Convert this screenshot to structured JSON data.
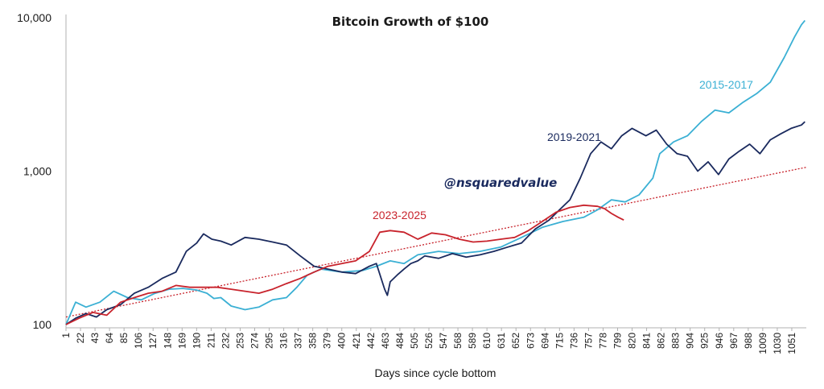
{
  "colors": {
    "c2015": "#3bb0d4",
    "c2019": "#1a2a5e",
    "c2023": "#c8232c",
    "trend": "#c8232c"
  },
  "chart_data": {
    "type": "line",
    "title": "Bitcoin Growth of $100",
    "subtitle": "",
    "xlabel": "Days since cycle bottom",
    "ylabel": "",
    "watermark": "@nsquaredvalue",
    "yscale": "log",
    "ylim": [
      100,
      10000
    ],
    "xlim": [
      1,
      1072
    ],
    "yticks": [
      100,
      1000,
      10000
    ],
    "ytick_labels": [
      "100",
      "1,000",
      "10,000"
    ],
    "xticks": [
      1,
      22,
      43,
      64,
      85,
      106,
      127,
      148,
      169,
      190,
      211,
      232,
      253,
      274,
      295,
      316,
      337,
      358,
      379,
      400,
      421,
      442,
      463,
      484,
      505,
      526,
      547,
      568,
      589,
      610,
      631,
      652,
      673,
      694,
      715,
      736,
      757,
      778,
      799,
      820,
      841,
      862,
      883,
      904,
      925,
      946,
      967,
      988,
      1009,
      1030,
      1051
    ],
    "grid": false,
    "legend": "none",
    "series": [
      {
        "name": "2015-2017",
        "label": "2015-2017",
        "x": [
          1,
          15,
          30,
          50,
          70,
          90,
          110,
          130,
          150,
          170,
          190,
          205,
          215,
          225,
          240,
          260,
          280,
          300,
          320,
          335,
          350,
          370,
          400,
          430,
          450,
          470,
          490,
          510,
          540,
          570,
          600,
          630,
          660,
          690,
          720,
          750,
          770,
          790,
          810,
          830,
          850,
          860,
          880,
          900,
          920,
          940,
          960,
          980,
          1000,
          1020,
          1040,
          1055,
          1065,
          1070
        ],
        "y": [
          100,
          140,
          130,
          140,
          165,
          150,
          145,
          160,
          170,
          172,
          168,
          160,
          148,
          150,
          132,
          125,
          130,
          145,
          150,
          175,
          210,
          230,
          220,
          225,
          240,
          260,
          250,
          285,
          300,
          290,
          300,
          320,
          370,
          430,
          470,
          500,
          560,
          650,
          630,
          700,
          900,
          1300,
          1550,
          1700,
          2100,
          2500,
          2400,
          2800,
          3200,
          3800,
          5500,
          7500,
          9000,
          9600
        ]
      },
      {
        "name": "2019-2021",
        "label": "2019-2021",
        "x": [
          1,
          15,
          30,
          45,
          60,
          80,
          100,
          120,
          140,
          160,
          175,
          190,
          200,
          212,
          225,
          240,
          260,
          280,
          300,
          320,
          340,
          360,
          380,
          400,
          420,
          440,
          450,
          462,
          466,
          470,
          480,
          490,
          500,
          510,
          520,
          540,
          560,
          580,
          600,
          620,
          640,
          660,
          680,
          700,
          715,
          730,
          745,
          760,
          775,
          790,
          805,
          820,
          840,
          855,
          870,
          885,
          900,
          915,
          930,
          945,
          960,
          975,
          990,
          1005,
          1020,
          1035,
          1050,
          1065,
          1070
        ],
        "y": [
          100,
          110,
          118,
          112,
          125,
          135,
          160,
          175,
          200,
          220,
          300,
          340,
          390,
          360,
          350,
          330,
          370,
          360,
          345,
          330,
          280,
          240,
          230,
          220,
          215,
          240,
          250,
          170,
          155,
          190,
          210,
          230,
          250,
          260,
          280,
          270,
          290,
          275,
          285,
          300,
          320,
          340,
          420,
          480,
          560,
          650,
          900,
          1300,
          1550,
          1400,
          1700,
          1900,
          1700,
          1850,
          1500,
          1300,
          1250,
          1000,
          1150,
          950,
          1200,
          1350,
          1500,
          1300,
          1600,
          1750,
          1900,
          2000,
          2100
        ]
      },
      {
        "name": "2023-2025",
        "label": "2023-2025",
        "x": [
          1,
          20,
          40,
          60,
          80,
          100,
          120,
          140,
          160,
          180,
          200,
          220,
          240,
          260,
          280,
          300,
          320,
          340,
          360,
          380,
          400,
          420,
          440,
          455,
          470,
          490,
          510,
          530,
          550,
          570,
          590,
          610,
          630,
          650,
          670,
          690,
          710,
          730,
          750,
          770,
          780,
          790,
          800,
          808
        ],
        "y": [
          100,
          110,
          120,
          115,
          140,
          150,
          160,
          165,
          180,
          175,
          175,
          175,
          170,
          165,
          160,
          170,
          185,
          200,
          220,
          240,
          250,
          260,
          300,
          400,
          410,
          400,
          360,
          395,
          385,
          360,
          345,
          350,
          360,
          370,
          410,
          470,
          540,
          580,
          600,
          590,
          570,
          530,
          500,
          480
        ]
      },
      {
        "name": "Trend",
        "x": [
          1,
          1072
        ],
        "y": [
          112,
          1060
        ]
      }
    ]
  }
}
